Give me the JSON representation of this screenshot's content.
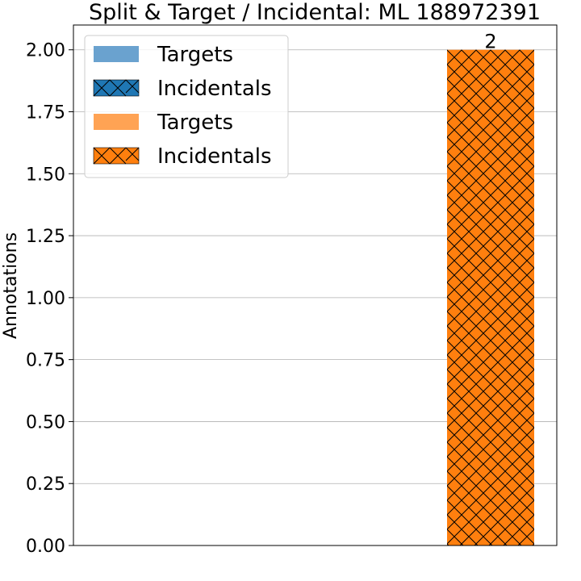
{
  "chart_data": {
    "type": "bar",
    "title": "Split & Target / Incidental: ML 188972391",
    "xlabel": "",
    "ylabel": "Annotations",
    "ylim": [
      0,
      2.1
    ],
    "y_ticks": [
      "0.00",
      "0.25",
      "0.50",
      "0.75",
      "1.00",
      "1.25",
      "1.50",
      "1.75",
      "2.00"
    ],
    "grid": "horizontal",
    "legend_position": "top-left",
    "categories": [
      "",
      ""
    ],
    "series": [
      {
        "name": "Targets",
        "color": "#6aa2cf",
        "hatch": "none",
        "values": [
          0,
          null
        ]
      },
      {
        "name": "Incidentals",
        "color": "#1f77b4",
        "hatch": "cross",
        "values": [
          0,
          null
        ]
      },
      {
        "name": "Targets",
        "color": "#ffa354",
        "hatch": "none",
        "values": [
          null,
          0
        ]
      },
      {
        "name": "Incidentals",
        "color": "#ff7f0e",
        "hatch": "cross",
        "values": [
          null,
          2
        ]
      }
    ],
    "data_labels": [
      {
        "series_index": 3,
        "category_index": 1,
        "text": "2"
      }
    ]
  }
}
